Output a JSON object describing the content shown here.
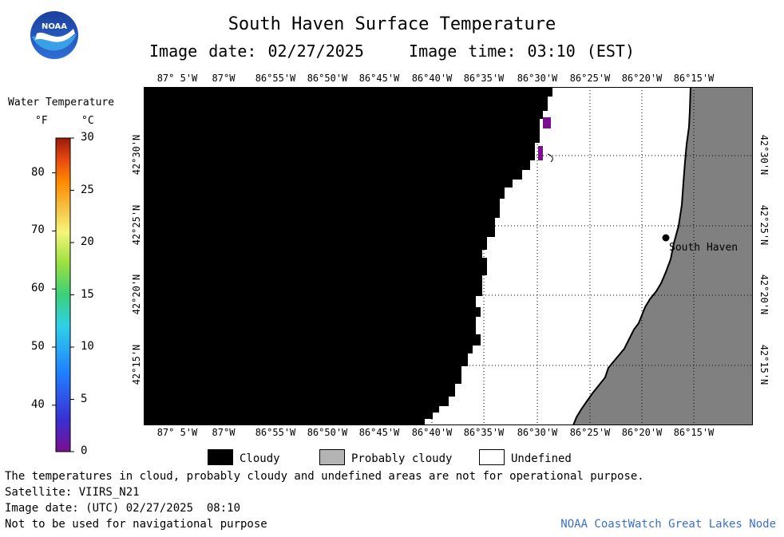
{
  "header": {
    "title": "South Haven Surface Temperature",
    "image_date_line": "Image date: 02/27/2025    Image time: 03:10 (EST)"
  },
  "logo": {
    "text": "NOAA"
  },
  "legend": {
    "title": "Water Temperature",
    "unit_f": "°F",
    "unit_c": "°C",
    "f_ticks": [
      {
        "label": "80",
        "value_c": 26.67
      },
      {
        "label": "70",
        "value_c": 21.11
      },
      {
        "label": "60",
        "value_c": 15.56
      },
      {
        "label": "50",
        "value_c": 10.0
      },
      {
        "label": "40",
        "value_c": 4.44
      }
    ],
    "c_ticks": [
      {
        "label": "30",
        "value_c": 30
      },
      {
        "label": "25",
        "value_c": 25
      },
      {
        "label": "20",
        "value_c": 20
      },
      {
        "label": "15",
        "value_c": 15
      },
      {
        "label": "10",
        "value_c": 10
      },
      {
        "label": "5",
        "value_c": 5
      },
      {
        "label": "0",
        "value_c": 0
      }
    ],
    "range_c": [
      0,
      30
    ],
    "colors": [
      "#7b0f8f",
      "#3a2fd0",
      "#1f7fff",
      "#2fd0e8",
      "#3ad07a",
      "#9ae040",
      "#f5f57a",
      "#f5c040",
      "#ff8a00",
      "#e84a10",
      "#9a1a08"
    ]
  },
  "map": {
    "top_lon_labels": [
      "87° 5'W",
      "87°W",
      "86°55'W",
      "86°50'W",
      "86°45'W",
      "86°40'W",
      "86°35'W",
      "86°30'W",
      "86°25'W",
      "86°20'W",
      "86°15'W"
    ],
    "bottom_lon_labels": [
      "87° 5'W",
      "87°W",
      "86°55'W",
      "86°50'W",
      "86°45'W",
      "86°40'W",
      "86°35'W",
      "86°30'W",
      "86°25'W",
      "86°20'W",
      "86°15'W"
    ],
    "lat_labels": [
      "42°30'N",
      "42°25'N",
      "42°20'N",
      "42°15'N"
    ],
    "place": {
      "name": "South Haven"
    },
    "colors": {
      "cloud": "#000000",
      "land": "#808080",
      "undefined": "#ffffff",
      "water_cold": "#7b0f8f"
    }
  },
  "key": {
    "items": [
      {
        "label": "Cloudy",
        "color": "#000000"
      },
      {
        "label": "Probably cloudy",
        "color": "#b4b4b4"
      },
      {
        "label": "Undefined",
        "color": "#ffffff"
      }
    ]
  },
  "footer": {
    "lines": [
      "The temperatures in cloud, probably cloudy and undefined areas are not for operational purpose.",
      "Satellite: VIIRS_N21",
      "Image date: (UTC) 02/27/2025  08:10",
      "Not to be used for navigational purpose"
    ],
    "credit": "NOAA CoastWatch Great Lakes Node"
  }
}
